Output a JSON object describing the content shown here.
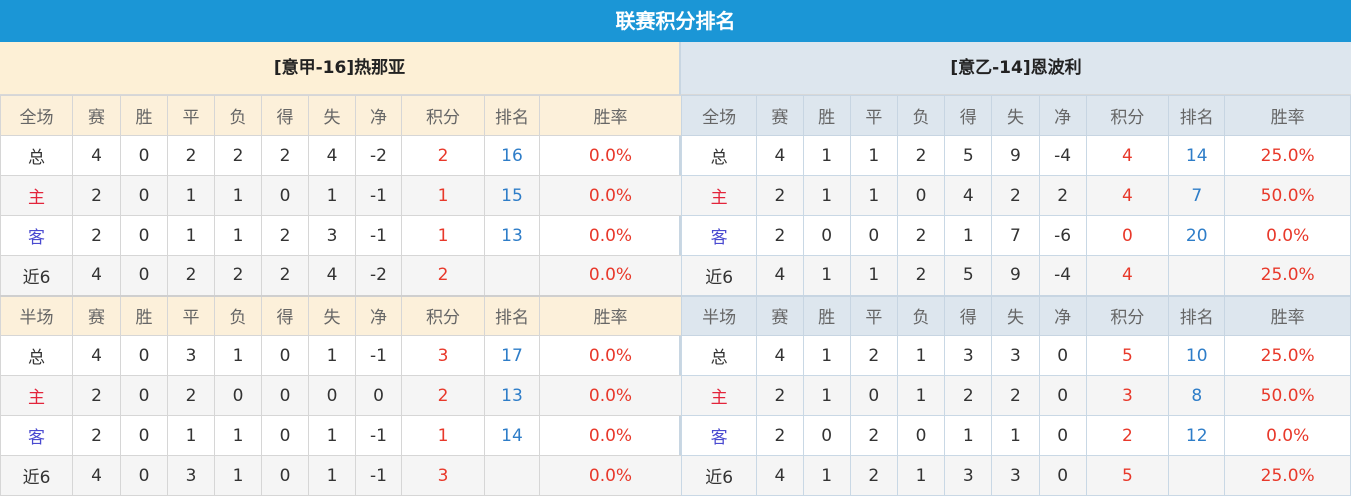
{
  "title": "联赛积分排名",
  "colors": {
    "header": "#1b96d6",
    "points": "#e8382a",
    "rank": "#2e7dc8"
  },
  "headers_full": [
    "全场",
    "赛",
    "胜",
    "平",
    "负",
    "得",
    "失",
    "净",
    "积分",
    "排名",
    "胜率"
  ],
  "headers_half": [
    "半场",
    "赛",
    "胜",
    "平",
    "负",
    "得",
    "失",
    "净",
    "积分",
    "排名",
    "胜率"
  ],
  "left": {
    "team": "[意甲-16]热那亚",
    "full": [
      [
        "总",
        "4",
        "0",
        "2",
        "2",
        "2",
        "4",
        "-2",
        "2",
        "16",
        "0.0%"
      ],
      [
        "主",
        "2",
        "0",
        "1",
        "1",
        "0",
        "1",
        "-1",
        "1",
        "15",
        "0.0%"
      ],
      [
        "客",
        "2",
        "0",
        "1",
        "1",
        "2",
        "3",
        "-1",
        "1",
        "13",
        "0.0%"
      ],
      [
        "近6",
        "4",
        "0",
        "2",
        "2",
        "2",
        "4",
        "-2",
        "2",
        "",
        "0.0%"
      ]
    ],
    "half": [
      [
        "总",
        "4",
        "0",
        "3",
        "1",
        "0",
        "1",
        "-1",
        "3",
        "17",
        "0.0%"
      ],
      [
        "主",
        "2",
        "0",
        "2",
        "0",
        "0",
        "0",
        "0",
        "2",
        "13",
        "0.0%"
      ],
      [
        "客",
        "2",
        "0",
        "1",
        "1",
        "0",
        "1",
        "-1",
        "1",
        "14",
        "0.0%"
      ],
      [
        "近6",
        "4",
        "0",
        "3",
        "1",
        "0",
        "1",
        "-1",
        "3",
        "",
        "0.0%"
      ]
    ]
  },
  "right": {
    "team": "[意乙-14]恩波利",
    "full": [
      [
        "总",
        "4",
        "1",
        "1",
        "2",
        "5",
        "9",
        "-4",
        "4",
        "14",
        "25.0%"
      ],
      [
        "主",
        "2",
        "1",
        "1",
        "0",
        "4",
        "2",
        "2",
        "4",
        "7",
        "50.0%"
      ],
      [
        "客",
        "2",
        "0",
        "0",
        "2",
        "1",
        "7",
        "-6",
        "0",
        "20",
        "0.0%"
      ],
      [
        "近6",
        "4",
        "1",
        "1",
        "2",
        "5",
        "9",
        "-4",
        "4",
        "",
        "25.0%"
      ]
    ],
    "half": [
      [
        "总",
        "4",
        "1",
        "2",
        "1",
        "3",
        "3",
        "0",
        "5",
        "10",
        "25.0%"
      ],
      [
        "主",
        "2",
        "1",
        "0",
        "1",
        "2",
        "2",
        "0",
        "3",
        "8",
        "50.0%"
      ],
      [
        "客",
        "2",
        "0",
        "2",
        "0",
        "1",
        "1",
        "0",
        "2",
        "12",
        "0.0%"
      ],
      [
        "近6",
        "4",
        "1",
        "2",
        "1",
        "3",
        "3",
        "0",
        "5",
        "",
        "25.0%"
      ]
    ]
  }
}
